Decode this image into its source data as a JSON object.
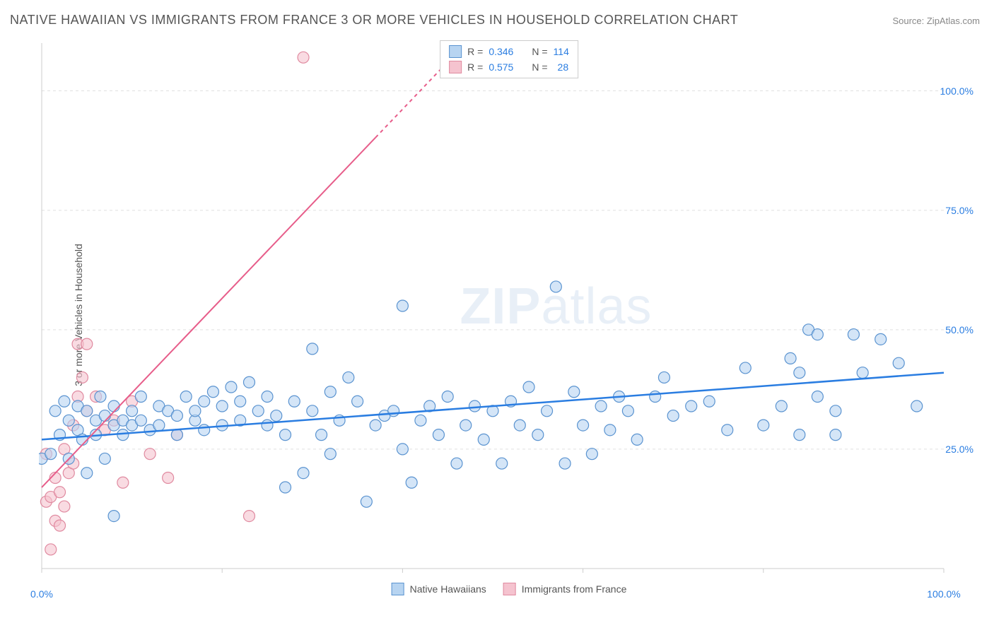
{
  "title": "NATIVE HAWAIIAN VS IMMIGRANTS FROM FRANCE 3 OR MORE VEHICLES IN HOUSEHOLD CORRELATION CHART",
  "source": "Source: ZipAtlas.com",
  "y_axis_label": "3 or more Vehicles in Household",
  "watermark_bold": "ZIP",
  "watermark_light": "atlas",
  "chart": {
    "type": "scatter",
    "xlim": [
      0,
      100
    ],
    "ylim": [
      0,
      110
    ],
    "x_ticks": [
      0,
      20,
      40,
      60,
      80,
      100
    ],
    "x_tick_labels_shown": {
      "0": "0.0%",
      "100": "100.0%"
    },
    "y_ticks": [
      25,
      50,
      75,
      100
    ],
    "y_tick_labels": {
      "25": "25.0%",
      "50": "50.0%",
      "75": "75.0%",
      "100": "100.0%"
    },
    "background_color": "#ffffff",
    "grid_color": "#e0e0e0",
    "grid_dash": "4,4",
    "axis_color": "#cccccc",
    "marker_radius": 8,
    "marker_stroke_width": 1.2,
    "axis_label_fontsize": 14,
    "tick_label_color": "#2a7de1",
    "title_color": "#555555",
    "title_fontsize": 18
  },
  "series": {
    "hawaiian": {
      "label": "Native Hawaiians",
      "fill": "#b7d4f1",
      "stroke": "#5a93d0",
      "fill_opacity": 0.6,
      "R": "0.346",
      "N": "114",
      "trend": {
        "x1": 0,
        "y1": 27,
        "x2": 100,
        "y2": 41,
        "color": "#2a7de1",
        "width": 2.5,
        "dash": "none"
      },
      "points": [
        [
          0,
          23
        ],
        [
          1,
          24
        ],
        [
          1.5,
          33
        ],
        [
          2,
          28
        ],
        [
          2.5,
          35
        ],
        [
          3,
          31
        ],
        [
          3,
          23
        ],
        [
          4,
          34
        ],
        [
          4,
          29
        ],
        [
          4.5,
          27
        ],
        [
          5,
          33
        ],
        [
          5,
          20
        ],
        [
          6,
          31
        ],
        [
          6,
          28
        ],
        [
          6.5,
          36
        ],
        [
          7,
          23
        ],
        [
          7,
          32
        ],
        [
          8,
          11
        ],
        [
          8,
          30
        ],
        [
          8,
          34
        ],
        [
          9,
          28
        ],
        [
          9,
          31
        ],
        [
          10,
          33
        ],
        [
          10,
          30
        ],
        [
          11,
          36
        ],
        [
          11,
          31
        ],
        [
          12,
          29
        ],
        [
          13,
          34
        ],
        [
          13,
          30
        ],
        [
          14,
          33
        ],
        [
          15,
          32
        ],
        [
          15,
          28
        ],
        [
          16,
          36
        ],
        [
          17,
          31
        ],
        [
          17,
          33
        ],
        [
          18,
          35
        ],
        [
          18,
          29
        ],
        [
          19,
          37
        ],
        [
          20,
          34
        ],
        [
          20,
          30
        ],
        [
          21,
          38
        ],
        [
          22,
          35
        ],
        [
          22,
          31
        ],
        [
          23,
          39
        ],
        [
          24,
          33
        ],
        [
          25,
          36
        ],
        [
          25,
          30
        ],
        [
          26,
          32
        ],
        [
          27,
          17
        ],
        [
          27,
          28
        ],
        [
          28,
          35
        ],
        [
          29,
          20
        ],
        [
          30,
          46
        ],
        [
          30,
          33
        ],
        [
          31,
          28
        ],
        [
          32,
          37
        ],
        [
          32,
          24
        ],
        [
          33,
          31
        ],
        [
          34,
          40
        ],
        [
          35,
          35
        ],
        [
          36,
          14
        ],
        [
          37,
          30
        ],
        [
          38,
          32
        ],
        [
          39,
          33
        ],
        [
          40,
          55
        ],
        [
          40,
          25
        ],
        [
          41,
          18
        ],
        [
          42,
          31
        ],
        [
          43,
          34
        ],
        [
          44,
          28
        ],
        [
          45,
          36
        ],
        [
          46,
          22
        ],
        [
          47,
          30
        ],
        [
          48,
          34
        ],
        [
          49,
          27
        ],
        [
          50,
          33
        ],
        [
          51,
          22
        ],
        [
          52,
          35
        ],
        [
          53,
          30
        ],
        [
          54,
          38
        ],
        [
          55,
          28
        ],
        [
          56,
          33
        ],
        [
          57,
          59
        ],
        [
          58,
          22
        ],
        [
          59,
          37
        ],
        [
          60,
          30
        ],
        [
          61,
          24
        ],
        [
          62,
          34
        ],
        [
          63,
          29
        ],
        [
          64,
          36
        ],
        [
          65,
          33
        ],
        [
          66,
          27
        ],
        [
          68,
          36
        ],
        [
          69,
          40
        ],
        [
          70,
          32
        ],
        [
          72,
          34
        ],
        [
          74,
          35
        ],
        [
          76,
          29
        ],
        [
          78,
          42
        ],
        [
          80,
          30
        ],
        [
          82,
          34
        ],
        [
          83,
          44
        ],
        [
          84,
          41
        ],
        [
          85,
          50
        ],
        [
          86,
          36
        ],
        [
          88,
          33
        ],
        [
          90,
          49
        ],
        [
          91,
          41
        ],
        [
          93,
          48
        ],
        [
          95,
          43
        ],
        [
          97,
          34
        ],
        [
          84,
          28
        ],
        [
          86,
          49
        ],
        [
          88,
          28
        ]
      ]
    },
    "france": {
      "label": "Immigrants from France",
      "fill": "#f5c3cf",
      "stroke": "#e08aa0",
      "fill_opacity": 0.6,
      "R": "0.575",
      "N": "28",
      "trend": {
        "x1": 0,
        "y1": 17,
        "x2": 47,
        "y2": 110,
        "color": "#e75d8a",
        "width": 2,
        "dash_after_x": 37,
        "dash": "5,5"
      },
      "points": [
        [
          0.5,
          14
        ],
        [
          0.5,
          24
        ],
        [
          1,
          15
        ],
        [
          1,
          4
        ],
        [
          1.5,
          19
        ],
        [
          1.5,
          10
        ],
        [
          2,
          16
        ],
        [
          2,
          9
        ],
        [
          2.5,
          13
        ],
        [
          2.5,
          25
        ],
        [
          3,
          20
        ],
        [
          3.5,
          30
        ],
        [
          3.5,
          22
        ],
        [
          4,
          47
        ],
        [
          4,
          36
        ],
        [
          4.5,
          40
        ],
        [
          5,
          47
        ],
        [
          5,
          33
        ],
        [
          6,
          36
        ],
        [
          7,
          29
        ],
        [
          8,
          31
        ],
        [
          9,
          18
        ],
        [
          10,
          35
        ],
        [
          12,
          24
        ],
        [
          14,
          19
        ],
        [
          15,
          28
        ],
        [
          23,
          11
        ],
        [
          29,
          107
        ]
      ]
    }
  },
  "legend_top": {
    "r_label": "R =",
    "n_label": "N ="
  },
  "legend_bottom": {
    "items": [
      "hawaiian",
      "france"
    ]
  }
}
